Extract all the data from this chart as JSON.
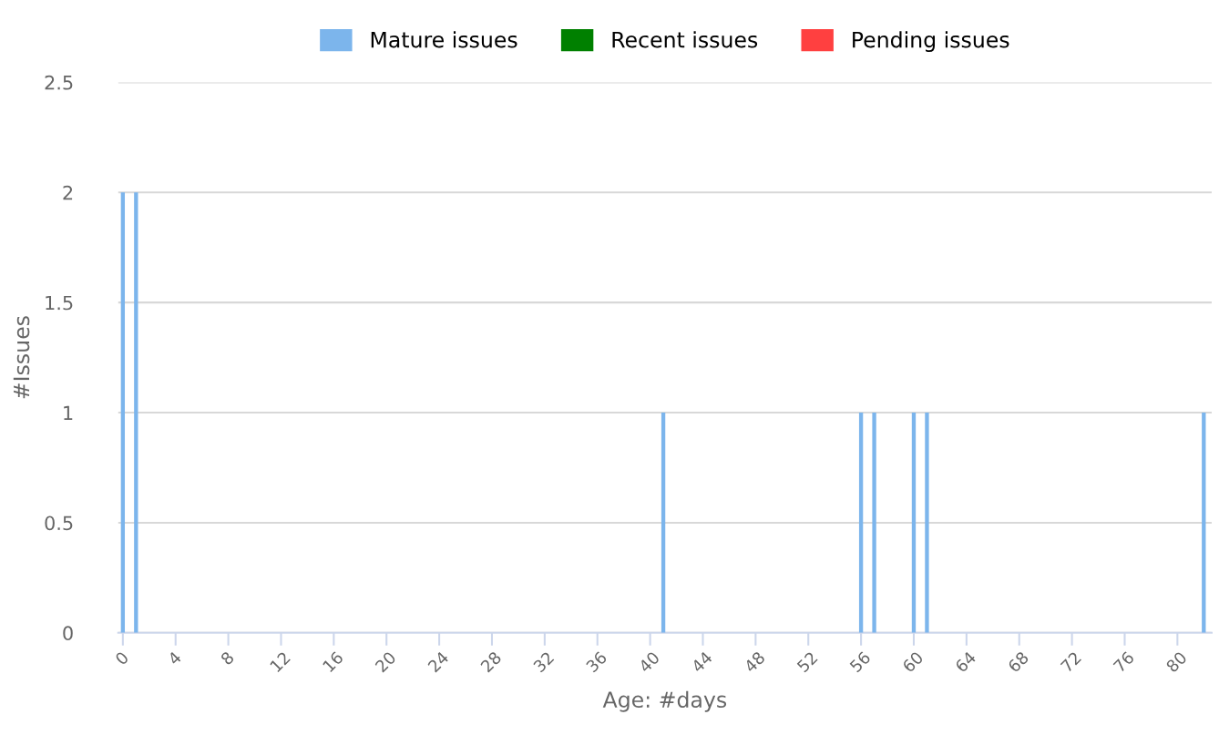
{
  "chart_data": {
    "type": "bar",
    "xlabel": "Age: #days",
    "ylabel": "#Issues",
    "series": [
      {
        "name": "Mature issues",
        "color": "#7cb5ec",
        "x": [
          0,
          1,
          41,
          56,
          57,
          60,
          61,
          82
        ],
        "values": [
          2,
          2,
          1,
          1,
          1,
          1,
          1,
          1
        ]
      },
      {
        "name": "Recent issues",
        "color": "#008000"
      },
      {
        "name": "Pending issues",
        "color": "#ff4040"
      }
    ],
    "xlim": [
      -0.35,
      82.6
    ],
    "xticks": [
      0,
      4,
      8,
      12,
      16,
      20,
      24,
      28,
      32,
      36,
      40,
      44,
      48,
      52,
      56,
      60,
      64,
      68,
      72,
      76,
      80
    ],
    "ylim": [
      0,
      2.5
    ],
    "yticks": [
      0,
      0.5,
      1,
      1.5,
      2,
      2.5
    ],
    "grid": "y",
    "legend": "top"
  }
}
